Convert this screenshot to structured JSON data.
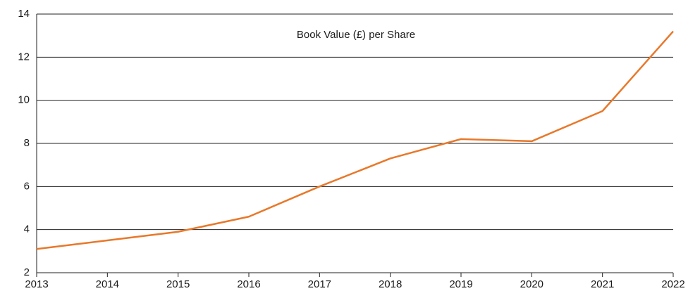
{
  "chart_data": {
    "type": "line",
    "title": "Book Value (£) per Share",
    "categories": [
      "2013",
      "2014",
      "2015",
      "2016",
      "2017",
      "2018",
      "2019",
      "2020",
      "2021",
      "2022"
    ],
    "series": [
      {
        "name": "Book Value (£) per Share",
        "color": "#e8782a",
        "values": [
          3.1,
          3.5,
          3.9,
          4.6,
          6.0,
          7.3,
          8.2,
          8.1,
          9.5,
          13.2
        ]
      }
    ],
    "ylim": [
      2,
      14
    ],
    "yticks": [
      2,
      4,
      6,
      8,
      10,
      12,
      14
    ],
    "grid": true
  }
}
